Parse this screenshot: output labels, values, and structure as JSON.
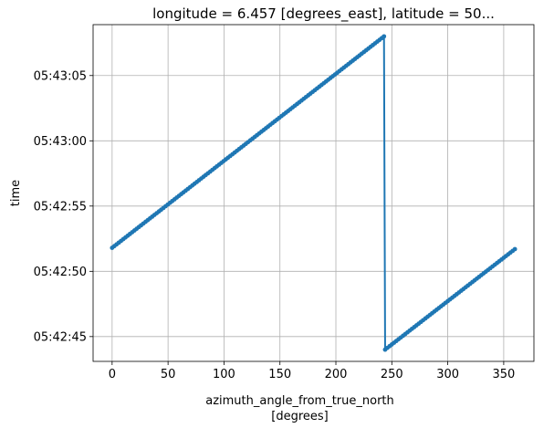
{
  "chart_data": {
    "type": "line",
    "title": "longitude = 6.457 [degrees_east], latitude = 50...",
    "xlabel": "azimuth_angle_from_true_north",
    "xlabel_units": "[degrees]",
    "ylabel": "time",
    "xlim": [
      -17,
      377
    ],
    "ylim_seconds_of_day": [
      20563.1,
      20588.9
    ],
    "x_ticks": [
      0,
      50,
      100,
      150,
      200,
      250,
      300,
      350
    ],
    "x_tick_labels": [
      "0",
      "50",
      "100",
      "150",
      "200",
      "250",
      "300",
      "350"
    ],
    "y_ticks_seconds_of_day": [
      20565,
      20570,
      20575,
      20580,
      20585
    ],
    "y_tick_labels": [
      "05:42:45",
      "05:42:50",
      "05:42:55",
      "05:43:00",
      "05:43:05"
    ],
    "grid": true,
    "color": "#1f77b4",
    "marker": "point",
    "series": [
      {
        "segments": [
          {
            "azimuth_start": 0,
            "azimuth_end": 243,
            "time_start": "05:42:51.8",
            "time_end": "05:43:08.0"
          },
          {
            "azimuth_start": 244,
            "azimuth_end": 360,
            "time_start": "05:42:44.0",
            "time_end": "05:42:51.7"
          }
        ]
      }
    ]
  }
}
